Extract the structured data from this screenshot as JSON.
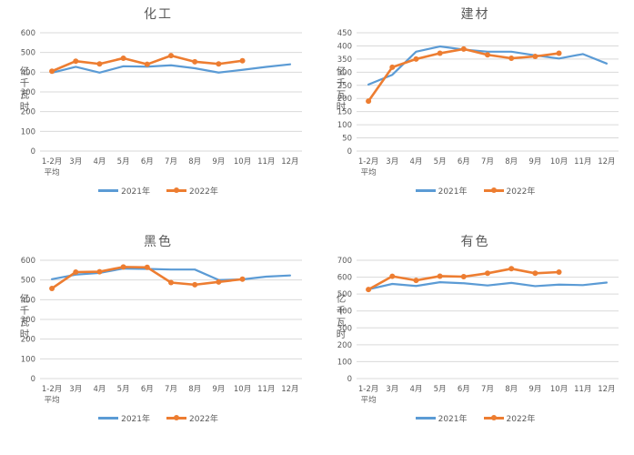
{
  "colors": {
    "series_2021": "#5B9BD5",
    "series_2022": "#ED7D31",
    "gridline": "#D9D9D9",
    "axis_text": "#595959",
    "title_text": "#595959",
    "background": "#FFFFFF"
  },
  "chart_data": [
    {
      "type": "line",
      "title": "化工",
      "ylabel": "亿千瓦时",
      "ylim": [
        0,
        600
      ],
      "ystep": 100,
      "grid": true,
      "legend_position": "bottom",
      "categories": [
        "1-2月",
        "3月",
        "4月",
        "5月",
        "6月",
        "7月",
        "8月",
        "9月",
        "10月",
        "11月",
        "12月"
      ],
      "first_category_sub": "平均",
      "series": [
        {
          "name": "2021年",
          "color": "#5B9BD5",
          "marker": false,
          "values": [
            397,
            427,
            398,
            430,
            428,
            435,
            420,
            398,
            412,
            427,
            440
          ]
        },
        {
          "name": "2022年",
          "color": "#ED7D31",
          "marker": true,
          "values": [
            405,
            456,
            442,
            471,
            440,
            484,
            453,
            442,
            458
          ]
        }
      ]
    },
    {
      "type": "line",
      "title": "建材",
      "ylabel": "亿千瓦时",
      "ylim": [
        0,
        450
      ],
      "ystep": 50,
      "grid": true,
      "legend_position": "bottom",
      "categories": [
        "1-2月",
        "3月",
        "4月",
        "5月",
        "6月",
        "7月",
        "8月",
        "9月",
        "10月",
        "11月",
        "12月"
      ],
      "first_category_sub": "平均",
      "series": [
        {
          "name": "2021年",
          "color": "#5B9BD5",
          "marker": false,
          "values": [
            253,
            290,
            378,
            398,
            386,
            378,
            378,
            364,
            352,
            369,
            333
          ]
        },
        {
          "name": "2022年",
          "color": "#ED7D31",
          "marker": true,
          "values": [
            190,
            319,
            350,
            372,
            388,
            366,
            353,
            360,
            372
          ]
        }
      ]
    },
    {
      "type": "line",
      "title": "黑色",
      "ylabel": "亿千瓦时",
      "ylim": [
        0,
        600
      ],
      "ystep": 100,
      "grid": true,
      "legend_position": "bottom",
      "categories": [
        "1-2月",
        "3月",
        "4月",
        "5月",
        "6月",
        "7月",
        "8月",
        "9月",
        "10月",
        "11月",
        "12月"
      ],
      "first_category_sub": "平均",
      "series": [
        {
          "name": "2021年",
          "color": "#5B9BD5",
          "marker": false,
          "values": [
            504,
            527,
            536,
            558,
            556,
            553,
            553,
            500,
            503,
            517,
            523
          ]
        },
        {
          "name": "2022年",
          "color": "#ED7D31",
          "marker": true,
          "values": [
            457,
            540,
            542,
            566,
            564,
            487,
            476,
            490,
            504
          ]
        }
      ]
    },
    {
      "type": "line",
      "title": "有色",
      "ylabel": "亿千瓦时",
      "ylim": [
        0,
        700
      ],
      "ystep": 100,
      "grid": true,
      "legend_position": "bottom",
      "categories": [
        "1-2月",
        "3月",
        "4月",
        "5月",
        "6月",
        "7月",
        "8月",
        "9月",
        "10月",
        "11月",
        "12月"
      ],
      "first_category_sub": "平均",
      "series": [
        {
          "name": "2021年",
          "color": "#5B9BD5",
          "marker": false,
          "values": [
            528,
            560,
            548,
            570,
            564,
            551,
            566,
            547,
            556,
            553,
            568
          ]
        },
        {
          "name": "2022年",
          "color": "#ED7D31",
          "marker": true,
          "values": [
            527,
            605,
            581,
            606,
            603,
            623,
            650,
            623,
            630
          ]
        }
      ]
    }
  ]
}
